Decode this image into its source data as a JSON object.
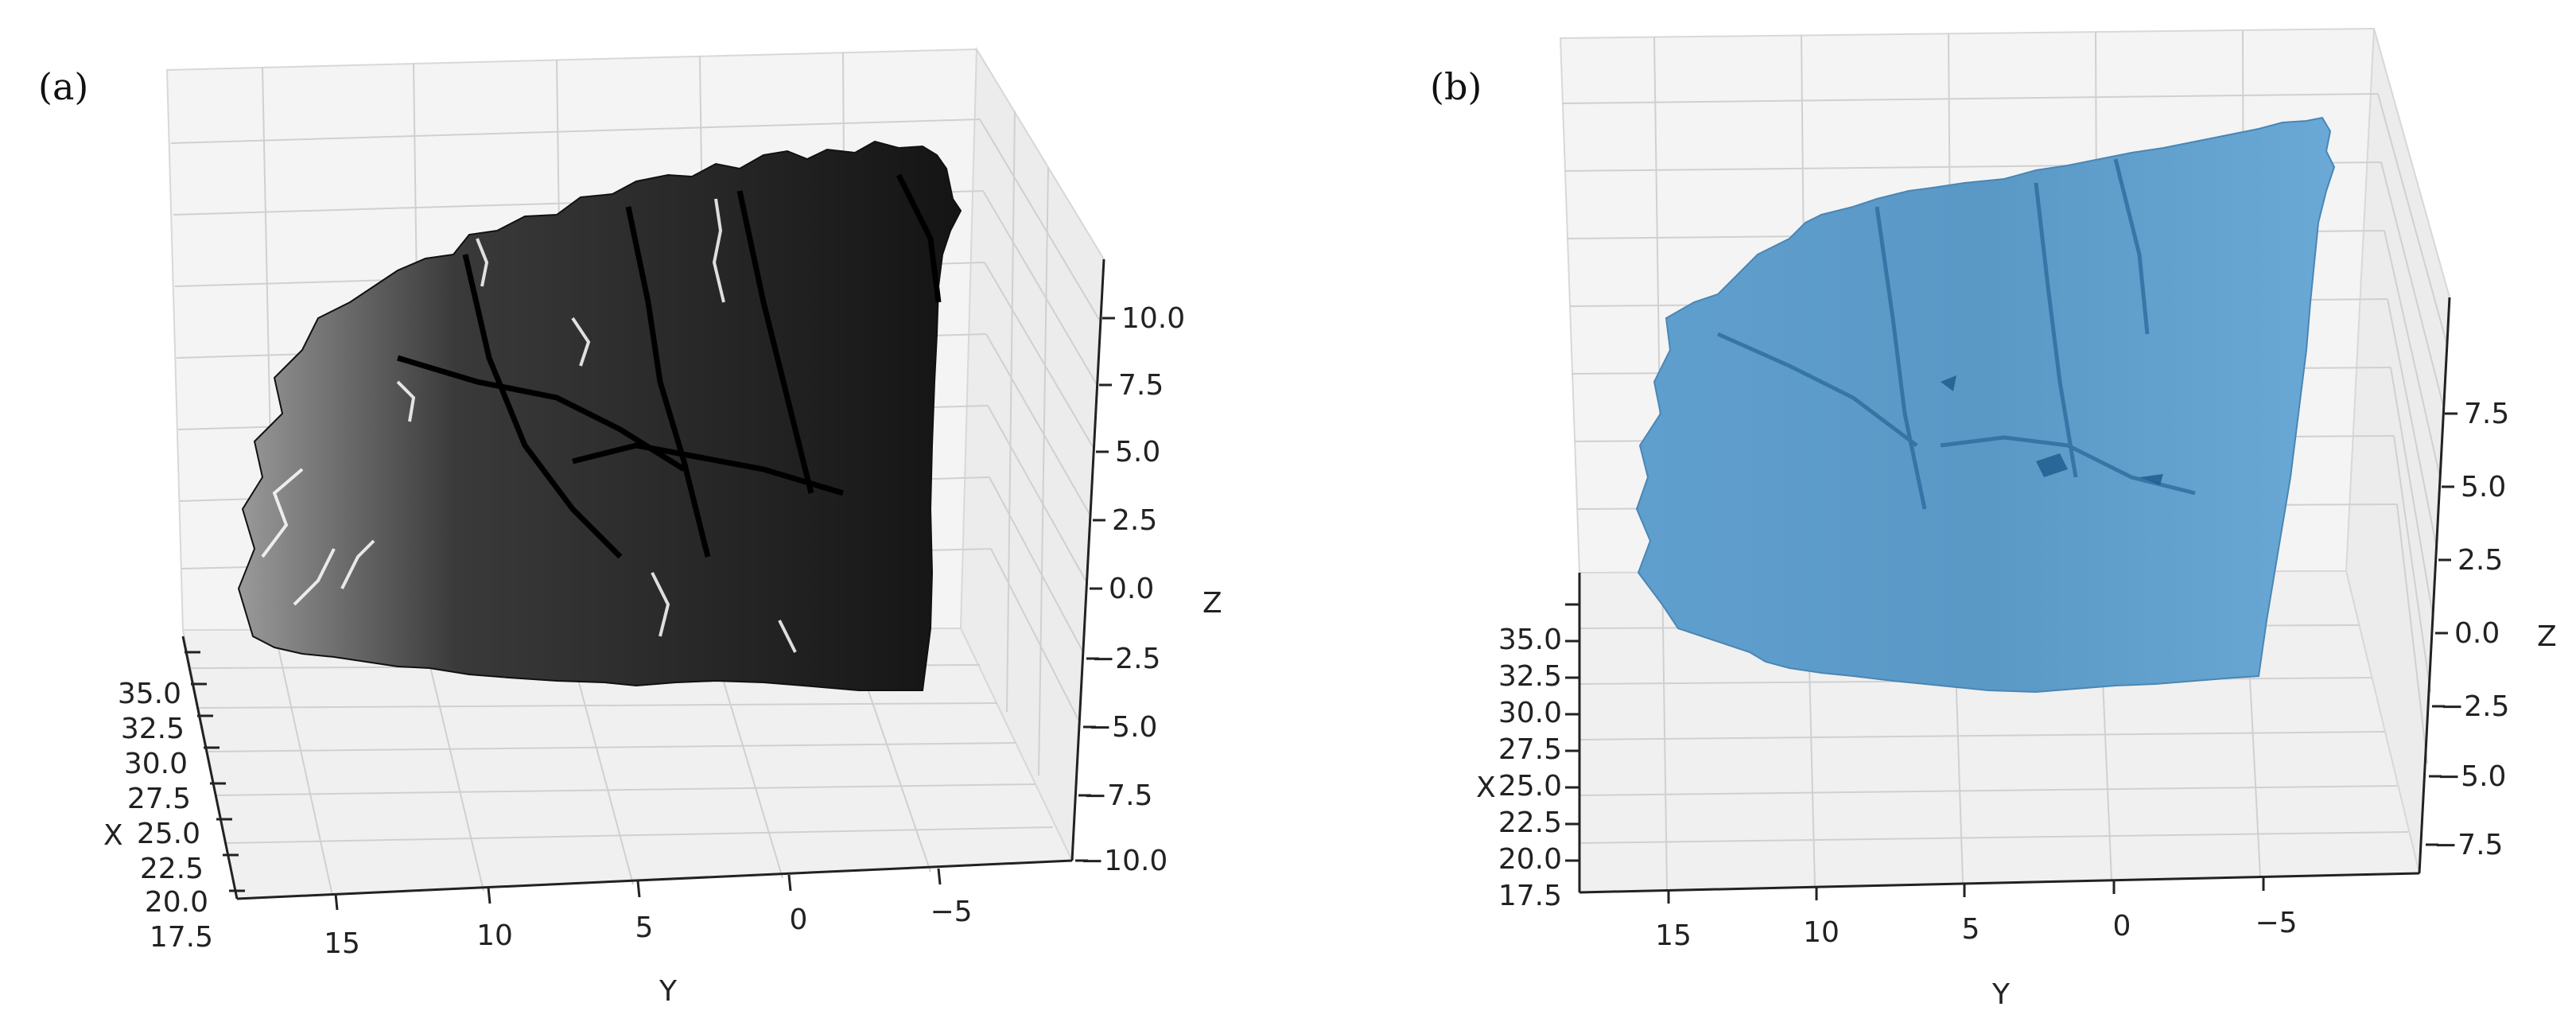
{
  "panels": [
    {
      "label": "(a)"
    },
    {
      "label": "(b)"
    }
  ],
  "chart_data": [
    {
      "type": "surface3d",
      "surface_color": "#1a1a1a",
      "axes": {
        "x": {
          "label": "X",
          "ticks": [
            "17.5",
            "20.0",
            "22.5",
            "25.0",
            "27.5",
            "30.0",
            "32.5",
            "35.0"
          ]
        },
        "y": {
          "label": "Y",
          "ticks": [
            "15",
            "10",
            "5",
            "0",
            "−5"
          ]
        },
        "z": {
          "label": "Z",
          "ticks": [
            "−10.0",
            "−7.5",
            "−5.0",
            "−2.5",
            "0.0",
            "2.5",
            "5.0",
            "7.5",
            "10.0"
          ]
        }
      },
      "grid": true
    },
    {
      "type": "surface3d",
      "surface_color": "#5b9ac9",
      "axes": {
        "x": {
          "label": "X",
          "ticks": [
            "17.5",
            "20.0",
            "22.5",
            "25.0",
            "27.5",
            "30.0",
            "32.5",
            "35.0"
          ]
        },
        "y": {
          "label": "Y",
          "ticks": [
            "15",
            "10",
            "5",
            "0",
            "−5"
          ]
        },
        "z": {
          "label": "Z",
          "ticks": [
            "−7.5",
            "−5.0",
            "−2.5",
            "0.0",
            "2.5",
            "5.0",
            "7.5"
          ]
        }
      },
      "grid": true
    }
  ]
}
